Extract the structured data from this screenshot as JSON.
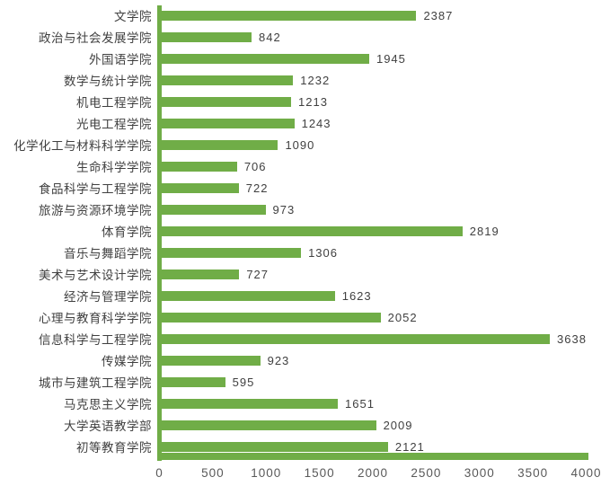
{
  "chart_data": {
    "type": "bar",
    "orientation": "horizontal",
    "title": "",
    "xlabel": "",
    "ylabel": "",
    "categories": [
      "文学院",
      "政治与社会发展学院",
      "外国语学院",
      "数学与统计学院",
      "机电工程学院",
      "光电工程学院",
      "化学化工与材料科学学院",
      "生命科学学院",
      "食品科学与工程学院",
      "旅游与资源环境学院",
      "体育学院",
      "音乐与舞蹈学院",
      "美术与艺术设计学院",
      "经济与管理学院",
      "心理与教育科学学院",
      "信息科学与工程学院",
      "传媒学院",
      "城市与建筑工程学院",
      "马克思主义学院",
      "大学英语教学部",
      "初等教育学院"
    ],
    "values": [
      2387,
      842,
      1945,
      1232,
      1213,
      1243,
      1090,
      706,
      722,
      973,
      2819,
      1306,
      727,
      1623,
      2052,
      3638,
      923,
      595,
      1651,
      2009,
      2121
    ],
    "data_labels_shown": true,
    "xlim": [
      0,
      4000
    ],
    "x_ticks": [
      0,
      500,
      1000,
      1500,
      2000,
      2500,
      3000,
      3500,
      4000
    ],
    "grid": false,
    "legend": "none",
    "colors": {
      "bar": "#70AD47",
      "axis_line": "#70AD47",
      "category_label": "#404040",
      "value_label": "#404040",
      "tick_label": "#595959",
      "background": "#FFFFFF"
    }
  }
}
